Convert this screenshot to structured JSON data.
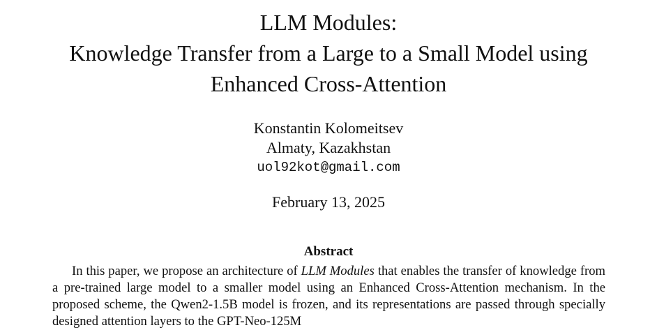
{
  "title": {
    "line1": "LLM Modules:",
    "line2": "Knowledge Transfer from a Large to a Small Model using",
    "line3": "Enhanced Cross-Attention"
  },
  "author": {
    "name": "Konstantin Kolomeitsev",
    "affiliation": "Almaty, Kazakhstan",
    "email": "uol92kot@gmail.com"
  },
  "date": "February 13, 2025",
  "abstract": {
    "heading": "Abstract",
    "text_before_emphasis": "In this paper, we propose an architecture of ",
    "emphasis": "LLM Modules",
    "text_after_emphasis": " that enables the transfer of knowledge from a pre-trained large model to a smaller model using an Enhanced Cross-Attention mechanism.  In the proposed scheme, the Qwen2-1.5B model is frozen, and its representations are passed through specially designed attention layers to the GPT-Neo-125M"
  }
}
